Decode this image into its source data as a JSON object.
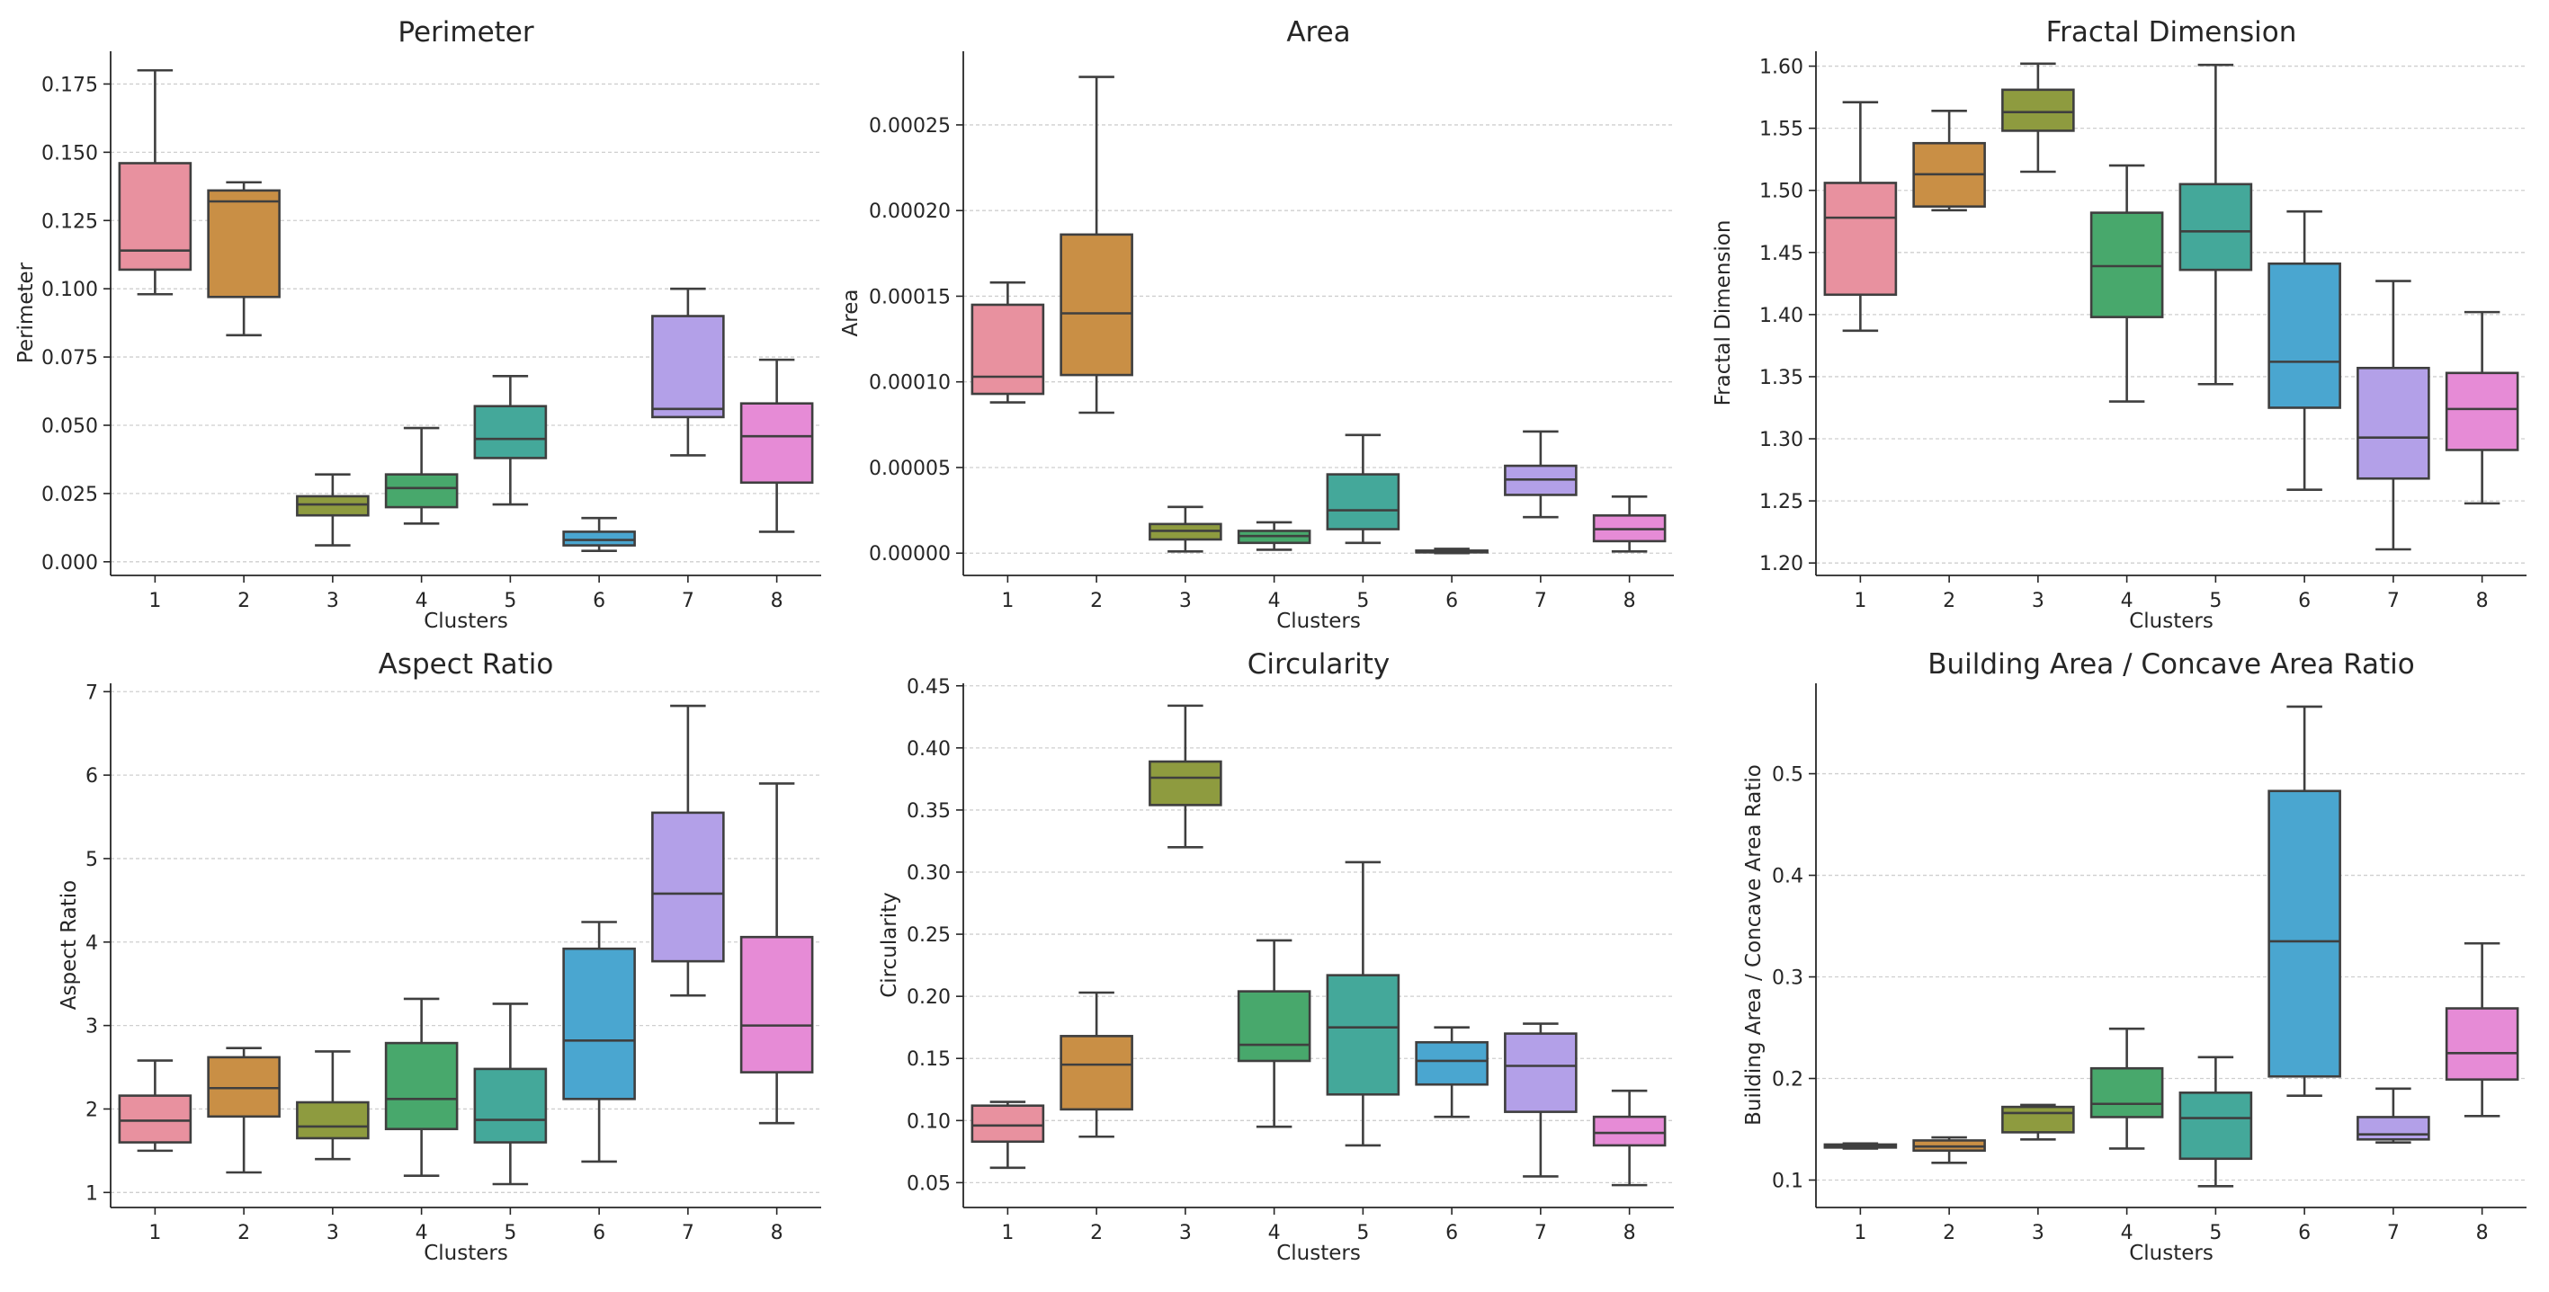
{
  "palette": [
    "#e8919f",
    "#c98f45",
    "#8e9b3f",
    "#48a86c",
    "#44a89a",
    "#4aa6d0",
    "#b3a0e8",
    "#e68bd6"
  ],
  "chart_data": [
    {
      "type": "box",
      "title": "Perimeter",
      "ylabel": "Perimeter",
      "xlabel": "Clusters",
      "categories": [
        "1",
        "2",
        "3",
        "4",
        "5",
        "6",
        "7",
        "8"
      ],
      "ylim": [
        -0.005,
        0.187
      ],
      "yticks": [
        "0.000",
        "0.025",
        "0.050",
        "0.075",
        "0.100",
        "0.125",
        "0.150",
        "0.175"
      ],
      "boxes": [
        {
          "whislo": 0.098,
          "q1": 0.107,
          "med": 0.114,
          "q3": 0.146,
          "whishi": 0.18
        },
        {
          "whislo": 0.083,
          "q1": 0.097,
          "med": 0.132,
          "q3": 0.136,
          "whishi": 0.139
        },
        {
          "whislo": 0.006,
          "q1": 0.017,
          "med": 0.021,
          "q3": 0.024,
          "whishi": 0.032
        },
        {
          "whislo": 0.014,
          "q1": 0.02,
          "med": 0.027,
          "q3": 0.032,
          "whishi": 0.049
        },
        {
          "whislo": 0.021,
          "q1": 0.038,
          "med": 0.045,
          "q3": 0.057,
          "whishi": 0.068
        },
        {
          "whislo": 0.004,
          "q1": 0.006,
          "med": 0.008,
          "q3": 0.011,
          "whishi": 0.016
        },
        {
          "whislo": 0.039,
          "q1": 0.053,
          "med": 0.056,
          "q3": 0.09,
          "whishi": 0.1
        },
        {
          "whislo": 0.011,
          "q1": 0.029,
          "med": 0.046,
          "q3": 0.058,
          "whishi": 0.074
        }
      ]
    },
    {
      "type": "box",
      "title": "Area",
      "ylabel": "Area",
      "xlabel": "Clusters",
      "categories": [
        "1",
        "2",
        "3",
        "4",
        "5",
        "6",
        "7",
        "8"
      ],
      "ylim": [
        -1.3e-05,
        0.000293
      ],
      "yticks": [
        "0.00000",
        "0.00005",
        "0.00010",
        "0.00015",
        "0.00020",
        "0.00025"
      ],
      "boxes": [
        {
          "whislo": 8.8e-05,
          "q1": 9.3e-05,
          "med": 0.000103,
          "q3": 0.000145,
          "whishi": 0.000158
        },
        {
          "whislo": 8.2e-05,
          "q1": 0.000104,
          "med": 0.00014,
          "q3": 0.000186,
          "whishi": 0.000278
        },
        {
          "whislo": 1e-06,
          "q1": 8e-06,
          "med": 1.3e-05,
          "q3": 1.7e-05,
          "whishi": 2.7e-05
        },
        {
          "whislo": 2e-06,
          "q1": 6e-06,
          "med": 1e-05,
          "q3": 1.3e-05,
          "whishi": 1.8e-05
        },
        {
          "whislo": 6e-06,
          "q1": 1.4e-05,
          "med": 2.5e-05,
          "q3": 4.6e-05,
          "whishi": 6.9e-05
        },
        {
          "whislo": 0.0,
          "q1": 5e-07,
          "med": 1e-06,
          "q3": 1.5e-06,
          "whishi": 2.5e-06
        },
        {
          "whislo": 2.1e-05,
          "q1": 3.4e-05,
          "med": 4.3e-05,
          "q3": 5.1e-05,
          "whishi": 7.1e-05
        },
        {
          "whislo": 1e-06,
          "q1": 7e-06,
          "med": 1.4e-05,
          "q3": 2.2e-05,
          "whishi": 3.3e-05
        }
      ]
    },
    {
      "type": "box",
      "title": "Fractal Dimension",
      "ylabel": "Fractal Dimension",
      "xlabel": "Clusters",
      "categories": [
        "1",
        "2",
        "3",
        "4",
        "5",
        "6",
        "7",
        "8"
      ],
      "ylim": [
        1.19,
        1.612
      ],
      "yticks": [
        "1.20",
        "1.25",
        "1.30",
        "1.35",
        "1.40",
        "1.45",
        "1.50",
        "1.55",
        "1.60"
      ],
      "boxes": [
        {
          "whislo": 1.387,
          "q1": 1.416,
          "med": 1.478,
          "q3": 1.506,
          "whishi": 1.571
        },
        {
          "whislo": 1.484,
          "q1": 1.487,
          "med": 1.513,
          "q3": 1.538,
          "whishi": 1.564
        },
        {
          "whislo": 1.515,
          "q1": 1.548,
          "med": 1.563,
          "q3": 1.581,
          "whishi": 1.602
        },
        {
          "whislo": 1.33,
          "q1": 1.398,
          "med": 1.439,
          "q3": 1.482,
          "whishi": 1.52
        },
        {
          "whislo": 1.344,
          "q1": 1.436,
          "med": 1.467,
          "q3": 1.505,
          "whishi": 1.601
        },
        {
          "whislo": 1.259,
          "q1": 1.325,
          "med": 1.362,
          "q3": 1.441,
          "whishi": 1.483
        },
        {
          "whislo": 1.211,
          "q1": 1.268,
          "med": 1.301,
          "q3": 1.357,
          "whishi": 1.427
        },
        {
          "whislo": 1.248,
          "q1": 1.291,
          "med": 1.324,
          "q3": 1.353,
          "whishi": 1.402
        }
      ]
    },
    {
      "type": "box",
      "title": "Aspect Ratio",
      "ylabel": "Aspect Ratio",
      "xlabel": "Clusters",
      "categories": [
        "1",
        "2",
        "3",
        "4",
        "5",
        "6",
        "7",
        "8"
      ],
      "ylim": [
        0.82,
        7.1
      ],
      "yticks": [
        "1",
        "2",
        "3",
        "4",
        "5",
        "6",
        "7"
      ],
      "boxes": [
        {
          "whislo": 1.5,
          "q1": 1.6,
          "med": 1.86,
          "q3": 2.16,
          "whishi": 2.58
        },
        {
          "whislo": 1.24,
          "q1": 1.91,
          "med": 2.25,
          "q3": 2.62,
          "whishi": 2.73
        },
        {
          "whislo": 1.4,
          "q1": 1.65,
          "med": 1.79,
          "q3": 2.08,
          "whishi": 2.69
        },
        {
          "whislo": 1.2,
          "q1": 1.76,
          "med": 2.12,
          "q3": 2.79,
          "whishi": 3.32
        },
        {
          "whislo": 1.1,
          "q1": 1.6,
          "med": 1.87,
          "q3": 2.48,
          "whishi": 3.26
        },
        {
          "whislo": 1.37,
          "q1": 2.12,
          "med": 2.82,
          "q3": 3.92,
          "whishi": 4.24
        },
        {
          "whislo": 3.36,
          "q1": 3.77,
          "med": 4.58,
          "q3": 5.55,
          "whishi": 6.83
        },
        {
          "whislo": 1.83,
          "q1": 2.44,
          "med": 3.0,
          "q3": 4.06,
          "whishi": 5.9
        }
      ]
    },
    {
      "type": "box",
      "title": "Circularity",
      "ylabel": "Circularity",
      "xlabel": "Clusters",
      "categories": [
        "1",
        "2",
        "3",
        "4",
        "5",
        "6",
        "7",
        "8"
      ],
      "ylim": [
        0.03,
        0.452
      ],
      "yticks": [
        "0.05",
        "0.10",
        "0.15",
        "0.20",
        "0.25",
        "0.30",
        "0.35",
        "0.40",
        "0.45"
      ],
      "boxes": [
        {
          "whislo": 0.062,
          "q1": 0.083,
          "med": 0.096,
          "q3": 0.112,
          "whishi": 0.115
        },
        {
          "whislo": 0.087,
          "q1": 0.109,
          "med": 0.145,
          "q3": 0.168,
          "whishi": 0.203
        },
        {
          "whislo": 0.32,
          "q1": 0.354,
          "med": 0.376,
          "q3": 0.389,
          "whishi": 0.434
        },
        {
          "whislo": 0.095,
          "q1": 0.148,
          "med": 0.161,
          "q3": 0.204,
          "whishi": 0.245
        },
        {
          "whislo": 0.08,
          "q1": 0.121,
          "med": 0.175,
          "q3": 0.217,
          "whishi": 0.308
        },
        {
          "whislo": 0.103,
          "q1": 0.129,
          "med": 0.148,
          "q3": 0.163,
          "whishi": 0.175
        },
        {
          "whislo": 0.055,
          "q1": 0.107,
          "med": 0.144,
          "q3": 0.17,
          "whishi": 0.178
        },
        {
          "whislo": 0.048,
          "q1": 0.08,
          "med": 0.09,
          "q3": 0.103,
          "whishi": 0.124
        }
      ]
    },
    {
      "type": "box",
      "title": "Building Area / Concave Area Ratio",
      "ylabel": "Building Area / Concave Area Ratio",
      "xlabel": "Clusters",
      "categories": [
        "1",
        "2",
        "3",
        "4",
        "5",
        "6",
        "7",
        "8"
      ],
      "ylim": [
        0.073,
        0.589
      ],
      "yticks": [
        "0.1",
        "0.2",
        "0.3",
        "0.4",
        "0.5"
      ],
      "boxes": [
        {
          "whislo": 0.131,
          "q1": 0.132,
          "med": 0.133,
          "q3": 0.135,
          "whishi": 0.136
        },
        {
          "whislo": 0.117,
          "q1": 0.129,
          "med": 0.133,
          "q3": 0.139,
          "whishi": 0.142
        },
        {
          "whislo": 0.14,
          "q1": 0.147,
          "med": 0.166,
          "q3": 0.172,
          "whishi": 0.174
        },
        {
          "whislo": 0.131,
          "q1": 0.162,
          "med": 0.175,
          "q3": 0.21,
          "whishi": 0.249
        },
        {
          "whislo": 0.094,
          "q1": 0.121,
          "med": 0.161,
          "q3": 0.186,
          "whishi": 0.221
        },
        {
          "whislo": 0.183,
          "q1": 0.202,
          "med": 0.335,
          "q3": 0.483,
          "whishi": 0.566
        },
        {
          "whislo": 0.137,
          "q1": 0.14,
          "med": 0.145,
          "q3": 0.162,
          "whishi": 0.19
        },
        {
          "whislo": 0.163,
          "q1": 0.199,
          "med": 0.225,
          "q3": 0.269,
          "whishi": 0.333
        }
      ]
    }
  ]
}
